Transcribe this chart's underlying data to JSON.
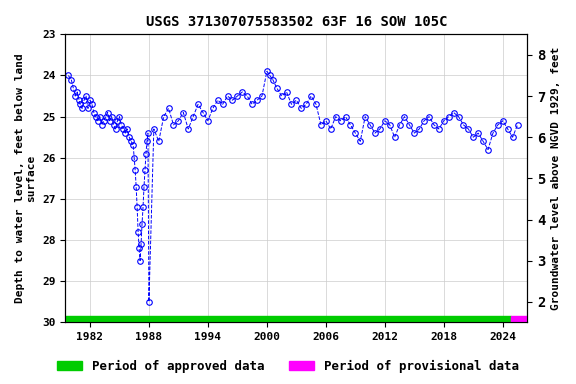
{
  "title": "USGS 371307075583502 63F 16 SOW 105C",
  "ylabel_left": "Depth to water level, feet below land\nsurface",
  "ylabel_right": "Groundwater level above NGVD 1929, feet",
  "xlim": [
    1979.5,
    2026.5
  ],
  "ylim_left": [
    30.0,
    23.0
  ],
  "ylim_right": [
    1.5,
    8.5
  ],
  "yticks_left": [
    23.0,
    24.0,
    25.0,
    26.0,
    27.0,
    28.0,
    29.0,
    30.0
  ],
  "yticks_right": [
    2.0,
    3.0,
    4.0,
    5.0,
    6.0,
    7.0,
    8.0
  ],
  "xticks": [
    1982,
    1988,
    1994,
    2000,
    2006,
    2012,
    2018,
    2024
  ],
  "background_color": "#ffffff",
  "grid_color": "#cccccc",
  "data_color": "#0000ff",
  "marker": "o",
  "marker_size": 4,
  "line_style": "--",
  "approved_color": "#00cc00",
  "provisional_color": "#ff00ff",
  "approved_start": 1979.5,
  "approved_end": 2024.8,
  "provisional_start": 2024.8,
  "provisional_end": 2026.5,
  "bar_y": 30.0,
  "font_family": "monospace",
  "title_fontsize": 10,
  "axis_label_fontsize": 8,
  "tick_fontsize": 8,
  "legend_fontsize": 9,
  "data_x": [
    1979.8,
    1980.1,
    1980.3,
    1980.5,
    1980.7,
    1980.9,
    1981.0,
    1981.2,
    1981.4,
    1981.6,
    1981.8,
    1982.0,
    1982.2,
    1982.4,
    1982.6,
    1982.8,
    1983.0,
    1983.2,
    1983.4,
    1983.6,
    1983.8,
    1984.0,
    1984.2,
    1984.4,
    1984.6,
    1984.8,
    1985.0,
    1985.2,
    1985.4,
    1985.6,
    1985.8,
    1986.0,
    1986.2,
    1986.4,
    1986.5,
    1986.6,
    1986.7,
    1986.8,
    1986.9,
    1987.0,
    1987.1,
    1987.2,
    1987.3,
    1987.4,
    1987.5,
    1987.6,
    1987.7,
    1987.8,
    1987.9,
    1988.0,
    1988.5,
    1989.0,
    1989.5,
    1990.0,
    1990.5,
    1991.0,
    1991.5,
    1992.0,
    1992.5,
    1993.0,
    1993.5,
    1994.0,
    1994.5,
    1995.0,
    1995.5,
    1996.0,
    1996.5,
    1997.0,
    1997.5,
    1998.0,
    1998.5,
    1999.0,
    1999.5,
    2000.0,
    2000.3,
    2000.6,
    2001.0,
    2001.5,
    2002.0,
    2002.5,
    2003.0,
    2003.5,
    2004.0,
    2004.5,
    2005.0,
    2005.5,
    2006.0,
    2006.5,
    2007.0,
    2007.5,
    2008.0,
    2008.5,
    2009.0,
    2009.5,
    2010.0,
    2010.5,
    2011.0,
    2011.5,
    2012.0,
    2012.5,
    2013.0,
    2013.5,
    2014.0,
    2014.5,
    2015.0,
    2015.5,
    2016.0,
    2016.5,
    2017.0,
    2017.5,
    2018.0,
    2018.5,
    2019.0,
    2019.5,
    2020.0,
    2020.5,
    2021.0,
    2021.5,
    2022.0,
    2022.5,
    2023.0,
    2023.5,
    2024.0,
    2024.5,
    2025.0,
    2025.5
  ],
  "data_y": [
    24.0,
    24.1,
    24.3,
    24.5,
    24.4,
    24.6,
    24.7,
    24.8,
    24.6,
    24.5,
    24.8,
    24.6,
    24.7,
    24.9,
    25.0,
    25.1,
    25.0,
    25.2,
    25.1,
    25.0,
    24.9,
    25.1,
    25.0,
    25.2,
    25.3,
    25.1,
    25.0,
    25.2,
    25.3,
    25.4,
    25.3,
    25.5,
    25.6,
    25.7,
    26.0,
    26.3,
    26.7,
    27.2,
    27.8,
    28.2,
    28.5,
    28.1,
    27.6,
    27.2,
    26.7,
    26.3,
    25.9,
    25.6,
    25.4,
    29.5,
    25.3,
    25.6,
    25.0,
    24.8,
    25.2,
    25.1,
    24.9,
    25.3,
    25.0,
    24.7,
    24.9,
    25.1,
    24.8,
    24.6,
    24.7,
    24.5,
    24.6,
    24.5,
    24.4,
    24.5,
    24.7,
    24.6,
    24.5,
    23.9,
    24.0,
    24.1,
    24.3,
    24.5,
    24.4,
    24.7,
    24.6,
    24.8,
    24.7,
    24.5,
    24.7,
    25.2,
    25.1,
    25.3,
    25.0,
    25.1,
    25.0,
    25.2,
    25.4,
    25.6,
    25.0,
    25.2,
    25.4,
    25.3,
    25.1,
    25.2,
    25.5,
    25.2,
    25.0,
    25.2,
    25.4,
    25.3,
    25.1,
    25.0,
    25.2,
    25.3,
    25.1,
    25.0,
    24.9,
    25.0,
    25.2,
    25.3,
    25.5,
    25.4,
    25.6,
    25.8,
    25.4,
    25.2,
    25.1,
    25.3,
    25.5,
    25.2
  ]
}
